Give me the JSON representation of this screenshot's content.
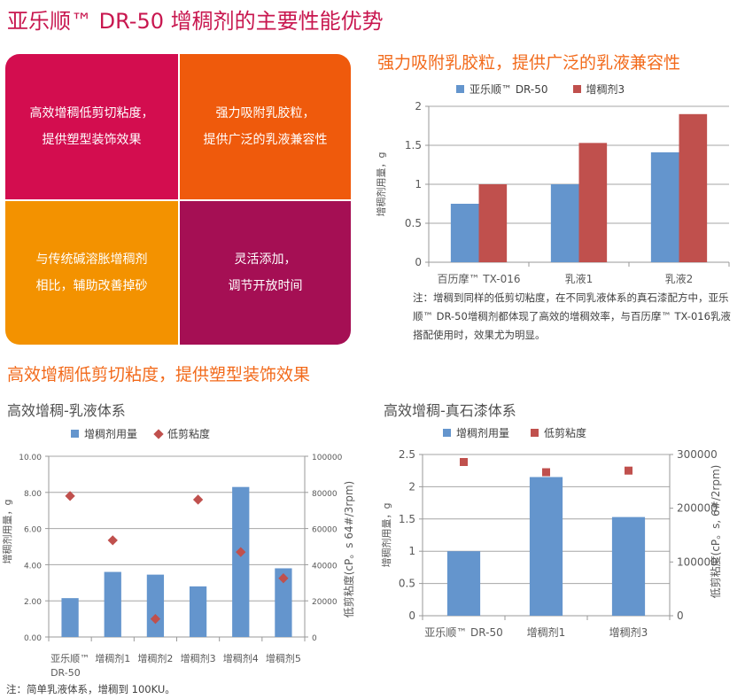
{
  "title": "亚乐顺™ DR-50 增稠剂的主要性能优势",
  "quadrants": [
    {
      "line1": "高效增稠低剪切粘度，",
      "line2": "提供塑型装饰效果",
      "color": "#d30d4f"
    },
    {
      "line1": "强力吸附乳胶粒，",
      "line2": "提供广泛的乳液兼容性",
      "color": "#ef5a0c"
    },
    {
      "line1": "与传统碱溶胀增稠剂",
      "line2": "相比，辅助改善掉砂",
      "color": "#f39200"
    },
    {
      "line1": "灵活添加，",
      "line2": "调节开放时间",
      "color": "#a50f54"
    }
  ],
  "section_left_heading": "高效增稠低剪切粘度，提供塑型装饰效果",
  "section_right_heading": "强力吸附乳胶粒，提供广泛的乳液兼容性",
  "colors": {
    "blue": "#6495cd",
    "red": "#c0504d"
  },
  "chart_data": [
    {
      "type": "bar",
      "title": "",
      "legend": [
        "亚乐顺™ DR-50",
        "增稠剂3"
      ],
      "categories": [
        "百历摩™ TX-016",
        "乳液1",
        "乳液2"
      ],
      "series": [
        {
          "name": "亚乐顺™ DR-50",
          "values": [
            0.75,
            1.0,
            1.41
          ]
        },
        {
          "name": "增稠剂3",
          "values": [
            1.0,
            1.53,
            1.9
          ]
        }
      ],
      "ylabel": "增稠剂用量，g",
      "ylim": [
        0,
        2
      ],
      "yticks": [
        "0",
        "0.5",
        "1",
        "1.5",
        "2"
      ],
      "note": "注：增稠到同样的低剪切粘度，在不同乳液体系的真石漆配方中，亚乐顺™ DR-50增稠剂都体现了高效的增稠效率，与百历摩™ TX-016乳液搭配使用时，效果尤为明显。"
    },
    {
      "type": "bar+scatter",
      "title": "高效增稠-乳液体系",
      "legend": [
        "增稠剂用量",
        "低剪粘度"
      ],
      "categories": [
        "亚乐顺™ DR-50",
        "增稠剂1",
        "增稠剂2",
        "增稠剂3",
        "增稠剂4",
        "增稠剂5"
      ],
      "series": [
        {
          "name": "增稠剂用量",
          "axis": "left",
          "values": [
            2.15,
            3.6,
            3.45,
            2.8,
            8.3,
            3.8
          ]
        },
        {
          "name": "低剪粘度",
          "axis": "right",
          "values": [
            78000,
            53500,
            10000,
            76000,
            47000,
            32500
          ]
        }
      ],
      "ylabel": "增稠剂用量，g",
      "y2label": "低剪粘度(cP。s 64#/3rpm)",
      "ylim": [
        0,
        10
      ],
      "y2lim": [
        0,
        100000
      ],
      "yticks": [
        "0.00",
        "2.00",
        "4.00",
        "6.00",
        "8.00",
        "10.00"
      ],
      "y2ticks": [
        "0",
        "20000",
        "40000",
        "60000",
        "80000",
        "100000"
      ],
      "note": "注：简单乳液体系，增稠到 100KU。"
    },
    {
      "type": "bar+scatter",
      "title": "高效增稠-真石漆体系",
      "legend": [
        "增稠剂用量",
        "低剪粘度"
      ],
      "categories": [
        "亚乐顺™ DR-50",
        "增稠剂1",
        "增稠剂3"
      ],
      "series": [
        {
          "name": "增稠剂用量",
          "axis": "left",
          "values": [
            1.0,
            2.15,
            1.53
          ]
        },
        {
          "name": "低剪粘度",
          "axis": "right",
          "values": [
            286000,
            267000,
            270000
          ]
        }
      ],
      "ylabel": "增稠剂用量，g",
      "y2label": "低剪粘度(cP。s, 6#/2rpm)",
      "ylim": [
        0,
        2.5
      ],
      "y2lim": [
        0,
        300000
      ],
      "yticks": [
        "0",
        "0.5",
        "1",
        "1.5",
        "2",
        "2.5"
      ],
      "y2ticks": [
        "0",
        "100000",
        "200000",
        "300000"
      ]
    }
  ]
}
